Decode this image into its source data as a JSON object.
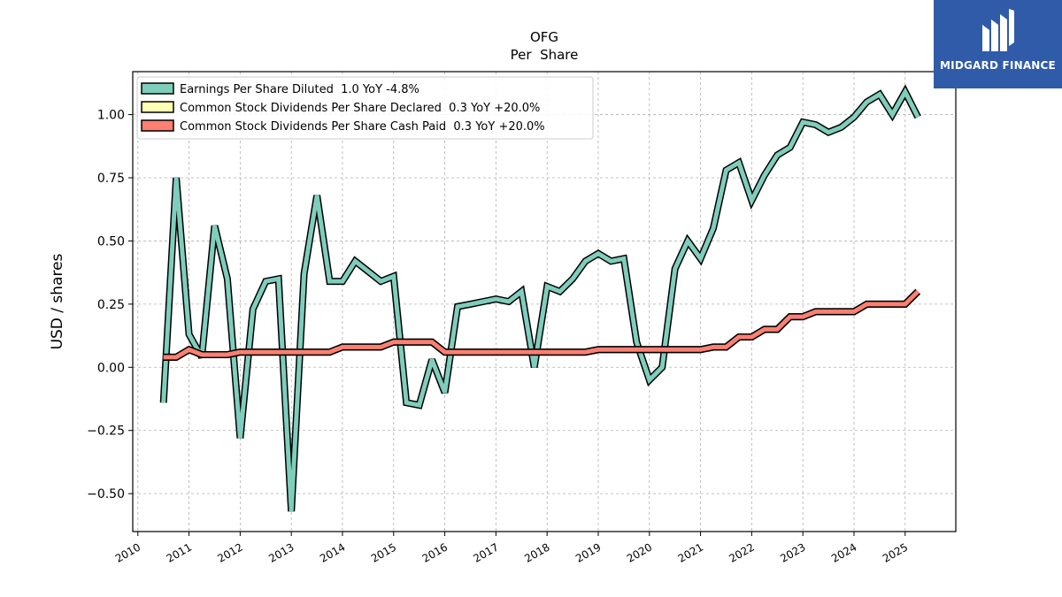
{
  "brand": {
    "name": "MIDGARD FINANCE",
    "logo_icon": "midgard-mark-icon",
    "bg_color": "#2f5ba8"
  },
  "chart_data": {
    "type": "line",
    "title": "OFG",
    "subtitle": "Per  Share",
    "xlabel": "",
    "ylabel": "USD / shares",
    "xlim": [
      2009.9,
      2025.99
    ],
    "ylim": [
      -0.65,
      1.17
    ],
    "x_ticks": [
      "2010",
      "2011",
      "2012",
      "2013",
      "2014",
      "2015",
      "2016",
      "2017",
      "2018",
      "2019",
      "2020",
      "2021",
      "2022",
      "2023",
      "2024",
      "2025"
    ],
    "y_ticks": [
      {
        "value": 1.0,
        "label": "1.00"
      },
      {
        "value": 0.75,
        "label": "0.75"
      },
      {
        "value": 0.5,
        "label": "0.50"
      },
      {
        "value": 0.25,
        "label": "0.25"
      },
      {
        "value": 0.0,
        "label": "0.00"
      },
      {
        "value": -0.25,
        "label": "−0.25"
      },
      {
        "value": -0.5,
        "label": "−0.50"
      }
    ],
    "grid": true,
    "legend_position": "top-left",
    "series": [
      {
        "name": "Earnings Per Share Diluted  1.0 YoY -4.8%",
        "color": "#7fcdbb",
        "x": [
          2010.5,
          2010.75,
          2011.0,
          2011.25,
          2011.5,
          2011.75,
          2012.0,
          2012.25,
          2012.5,
          2012.75,
          2013.0,
          2013.25,
          2013.5,
          2013.75,
          2014.0,
          2014.25,
          2014.5,
          2014.75,
          2015.0,
          2015.25,
          2015.5,
          2015.75,
          2016.0,
          2016.25,
          2016.5,
          2016.75,
          2017.0,
          2017.25,
          2017.5,
          2017.75,
          2018.0,
          2018.25,
          2018.5,
          2018.75,
          2019.0,
          2019.25,
          2019.5,
          2019.75,
          2020.0,
          2020.25,
          2020.5,
          2020.75,
          2021.0,
          2021.25,
          2021.5,
          2021.75,
          2022.0,
          2022.25,
          2022.5,
          2022.75,
          2023.0,
          2023.25,
          2023.5,
          2023.75,
          2024.0,
          2024.25,
          2024.5,
          2024.75,
          2025.0,
          2025.25
        ],
        "values": [
          -0.14,
          0.75,
          0.13,
          0.04,
          0.56,
          0.35,
          -0.28,
          0.23,
          0.34,
          0.35,
          -0.57,
          0.37,
          0.68,
          0.34,
          0.34,
          0.42,
          0.38,
          0.34,
          0.36,
          -0.14,
          -0.15,
          0.03,
          -0.1,
          0.24,
          0.25,
          0.26,
          0.27,
          0.26,
          0.3,
          0.0,
          0.32,
          0.3,
          0.35,
          0.42,
          0.45,
          0.42,
          0.43,
          0.1,
          -0.05,
          0.0,
          0.39,
          0.5,
          0.43,
          0.55,
          0.78,
          0.81,
          0.66,
          0.76,
          0.84,
          0.87,
          0.97,
          0.96,
          0.93,
          0.95,
          0.99,
          1.05,
          1.08,
          1.0,
          1.09,
          0.99
        ]
      },
      {
        "name": "Common Stock Dividends Per Share Declared  0.3 YoY +20.0%",
        "color": "#ffffb3",
        "x": [
          2010.5,
          2010.75,
          2011.0,
          2011.25,
          2011.5,
          2011.75,
          2012.0,
          2012.25,
          2012.5,
          2012.75,
          2013.0,
          2013.25,
          2013.5,
          2013.75,
          2014.0,
          2014.25,
          2014.5,
          2014.75,
          2015.0,
          2015.25,
          2015.5,
          2015.75,
          2016.0,
          2016.25,
          2016.5,
          2016.75,
          2017.0,
          2017.25,
          2017.5,
          2017.75,
          2018.0,
          2018.25,
          2018.5,
          2018.75,
          2019.0,
          2019.25,
          2019.5,
          2019.75,
          2020.0,
          2020.25,
          2020.5,
          2020.75,
          2021.0,
          2021.25,
          2021.5,
          2021.75,
          2022.0,
          2022.25,
          2022.5,
          2022.75,
          2023.0,
          2023.25,
          2023.5,
          2023.75,
          2024.0,
          2024.25,
          2024.5,
          2024.75,
          2025.0,
          2025.25
        ],
        "values": [
          0.04,
          0.04,
          0.07,
          0.05,
          0.05,
          0.05,
          0.06,
          0.06,
          0.06,
          0.06,
          0.06,
          0.06,
          0.06,
          0.06,
          0.08,
          0.08,
          0.08,
          0.08,
          0.1,
          0.1,
          0.1,
          0.1,
          0.06,
          0.06,
          0.06,
          0.06,
          0.06,
          0.06,
          0.06,
          0.06,
          0.06,
          0.06,
          0.06,
          0.06,
          0.07,
          0.07,
          0.07,
          0.07,
          0.07,
          0.07,
          0.07,
          0.07,
          0.07,
          0.08,
          0.08,
          0.12,
          0.12,
          0.15,
          0.15,
          0.2,
          0.2,
          0.22,
          0.22,
          0.22,
          0.22,
          0.25,
          0.25,
          0.25,
          0.25,
          0.3
        ]
      },
      {
        "name": "Common Stock Dividends Per Share Cash Paid  0.3 YoY +20.0%",
        "color": "#fb8072",
        "x": [
          2010.5,
          2010.75,
          2011.0,
          2011.25,
          2011.5,
          2011.75,
          2012.0,
          2012.25,
          2012.5,
          2012.75,
          2013.0,
          2013.25,
          2013.5,
          2013.75,
          2014.0,
          2014.25,
          2014.5,
          2014.75,
          2015.0,
          2015.25,
          2015.5,
          2015.75,
          2016.0,
          2016.25,
          2016.5,
          2016.75,
          2017.0,
          2017.25,
          2017.5,
          2017.75,
          2018.0,
          2018.25,
          2018.5,
          2018.75,
          2019.0,
          2019.25,
          2019.5,
          2019.75,
          2020.0,
          2020.25,
          2020.5,
          2020.75,
          2021.0,
          2021.25,
          2021.5,
          2021.75,
          2022.0,
          2022.25,
          2022.5,
          2022.75,
          2023.0,
          2023.25,
          2023.5,
          2023.75,
          2024.0,
          2024.25,
          2024.5,
          2024.75,
          2025.0,
          2025.25
        ],
        "values": [
          0.04,
          0.04,
          0.07,
          0.05,
          0.05,
          0.05,
          0.06,
          0.06,
          0.06,
          0.06,
          0.06,
          0.06,
          0.06,
          0.06,
          0.08,
          0.08,
          0.08,
          0.08,
          0.1,
          0.1,
          0.1,
          0.1,
          0.06,
          0.06,
          0.06,
          0.06,
          0.06,
          0.06,
          0.06,
          0.06,
          0.06,
          0.06,
          0.06,
          0.06,
          0.07,
          0.07,
          0.07,
          0.07,
          0.07,
          0.07,
          0.07,
          0.07,
          0.07,
          0.08,
          0.08,
          0.12,
          0.12,
          0.15,
          0.15,
          0.2,
          0.2,
          0.22,
          0.22,
          0.22,
          0.22,
          0.25,
          0.25,
          0.25,
          0.25,
          0.3
        ]
      }
    ]
  }
}
